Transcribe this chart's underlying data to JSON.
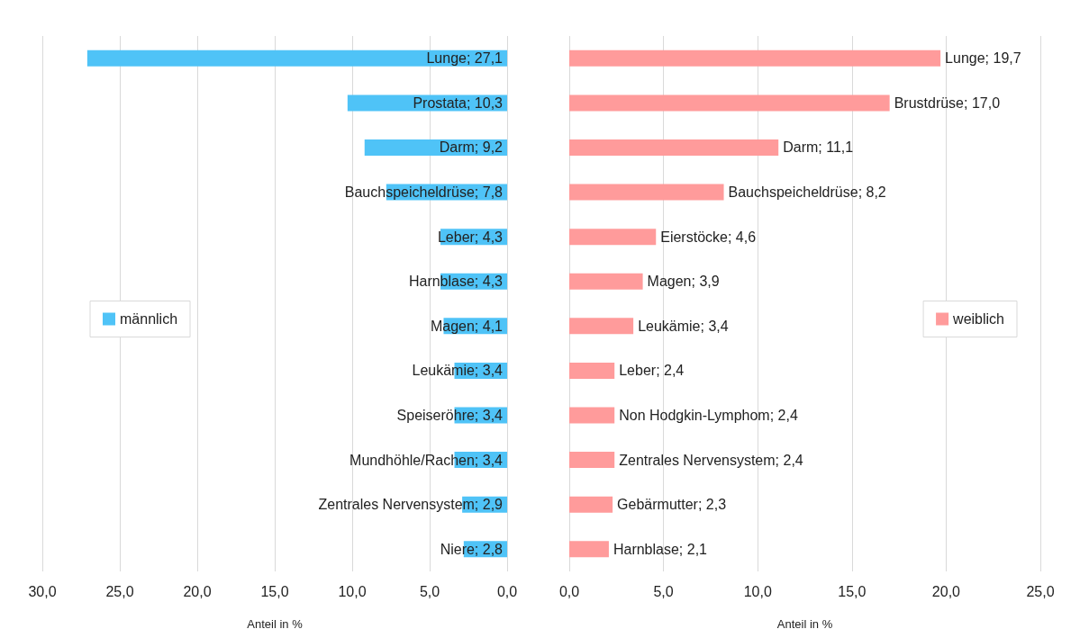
{
  "chart_data": [
    {
      "type": "bar",
      "orientation": "horizontal",
      "xlabel": "Anteil in %",
      "categories": [
        null,
        null,
        null,
        null,
        null,
        null,
        null,
        null,
        null,
        null,
        null,
        null
      ],
      "series": [
        {
          "name": "männlich",
          "color": "#4fc3f7",
          "values": [
            27.1,
            10.3,
            9.2,
            7.8,
            4.3,
            4.3,
            4.1,
            3.4,
            3.4,
            3.4,
            2.9,
            2.8
          ],
          "value_labels": [
            "Lunge; 27,1",
            "Prostata; 10,3",
            "Darm; 9,2",
            "Bauchspeicheldrüse; 7,8",
            "Leber; 4,3",
            "Harnblase; 4,3",
            "Magen; 4,1",
            "Leukämie; 3,4",
            "Speiseröhre; 3,4",
            "Mundhöhle/Rachen; 3,4",
            "Zentrales Nervensystem; 2,9",
            "Niere; 2,8"
          ]
        }
      ],
      "xlim": [
        30,
        0
      ],
      "xticks": [
        {
          "value": 30,
          "label": "30,0"
        },
        {
          "value": 25,
          "label": "25,0"
        },
        {
          "value": 20,
          "label": "20,0"
        },
        {
          "value": 15,
          "label": "15,0"
        },
        {
          "value": 10,
          "label": "10,0"
        },
        {
          "value": 5,
          "label": "5,0"
        },
        {
          "value": 0,
          "label": "0,0"
        }
      ],
      "grid": "x",
      "legend": "left",
      "tick_labels": "x"
    },
    {
      "type": "bar",
      "orientation": "horizontal",
      "xlabel": "Anteil in %",
      "categories": [
        null,
        null,
        null,
        null,
        null,
        null,
        null,
        null,
        null,
        null,
        null,
        null
      ],
      "series": [
        {
          "name": "weiblich",
          "color": "#ff9b9b",
          "values": [
            19.7,
            17.0,
            11.1,
            8.2,
            4.6,
            3.9,
            3.4,
            2.4,
            2.4,
            2.4,
            2.3,
            2.1
          ],
          "value_labels": [
            "Lunge; 19,7",
            "Brustdrüse; 17,0",
            "Darm; 11,1",
            "Bauchspeicheldrüse; 8,2",
            "Eierstöcke; 4,6",
            "Magen; 3,9",
            "Leukämie; 3,4",
            "Leber; 2,4",
            "Non Hodgkin-Lymphom; 2,4",
            "Zentrales Nervensystem; 2,4",
            "Gebärmutter; 2,3",
            "Harnblase; 2,1"
          ]
        }
      ],
      "xlim": [
        0,
        25
      ],
      "xticks": [
        {
          "value": 0,
          "label": "0,0"
        },
        {
          "value": 5,
          "label": "5,0"
        },
        {
          "value": 10,
          "label": "10,0"
        },
        {
          "value": 15,
          "label": "15,0"
        },
        {
          "value": 20,
          "label": "20,0"
        },
        {
          "value": 25,
          "label": "25,0"
        }
      ],
      "grid": "x",
      "legend": "right",
      "tick_labels": "x"
    }
  ]
}
